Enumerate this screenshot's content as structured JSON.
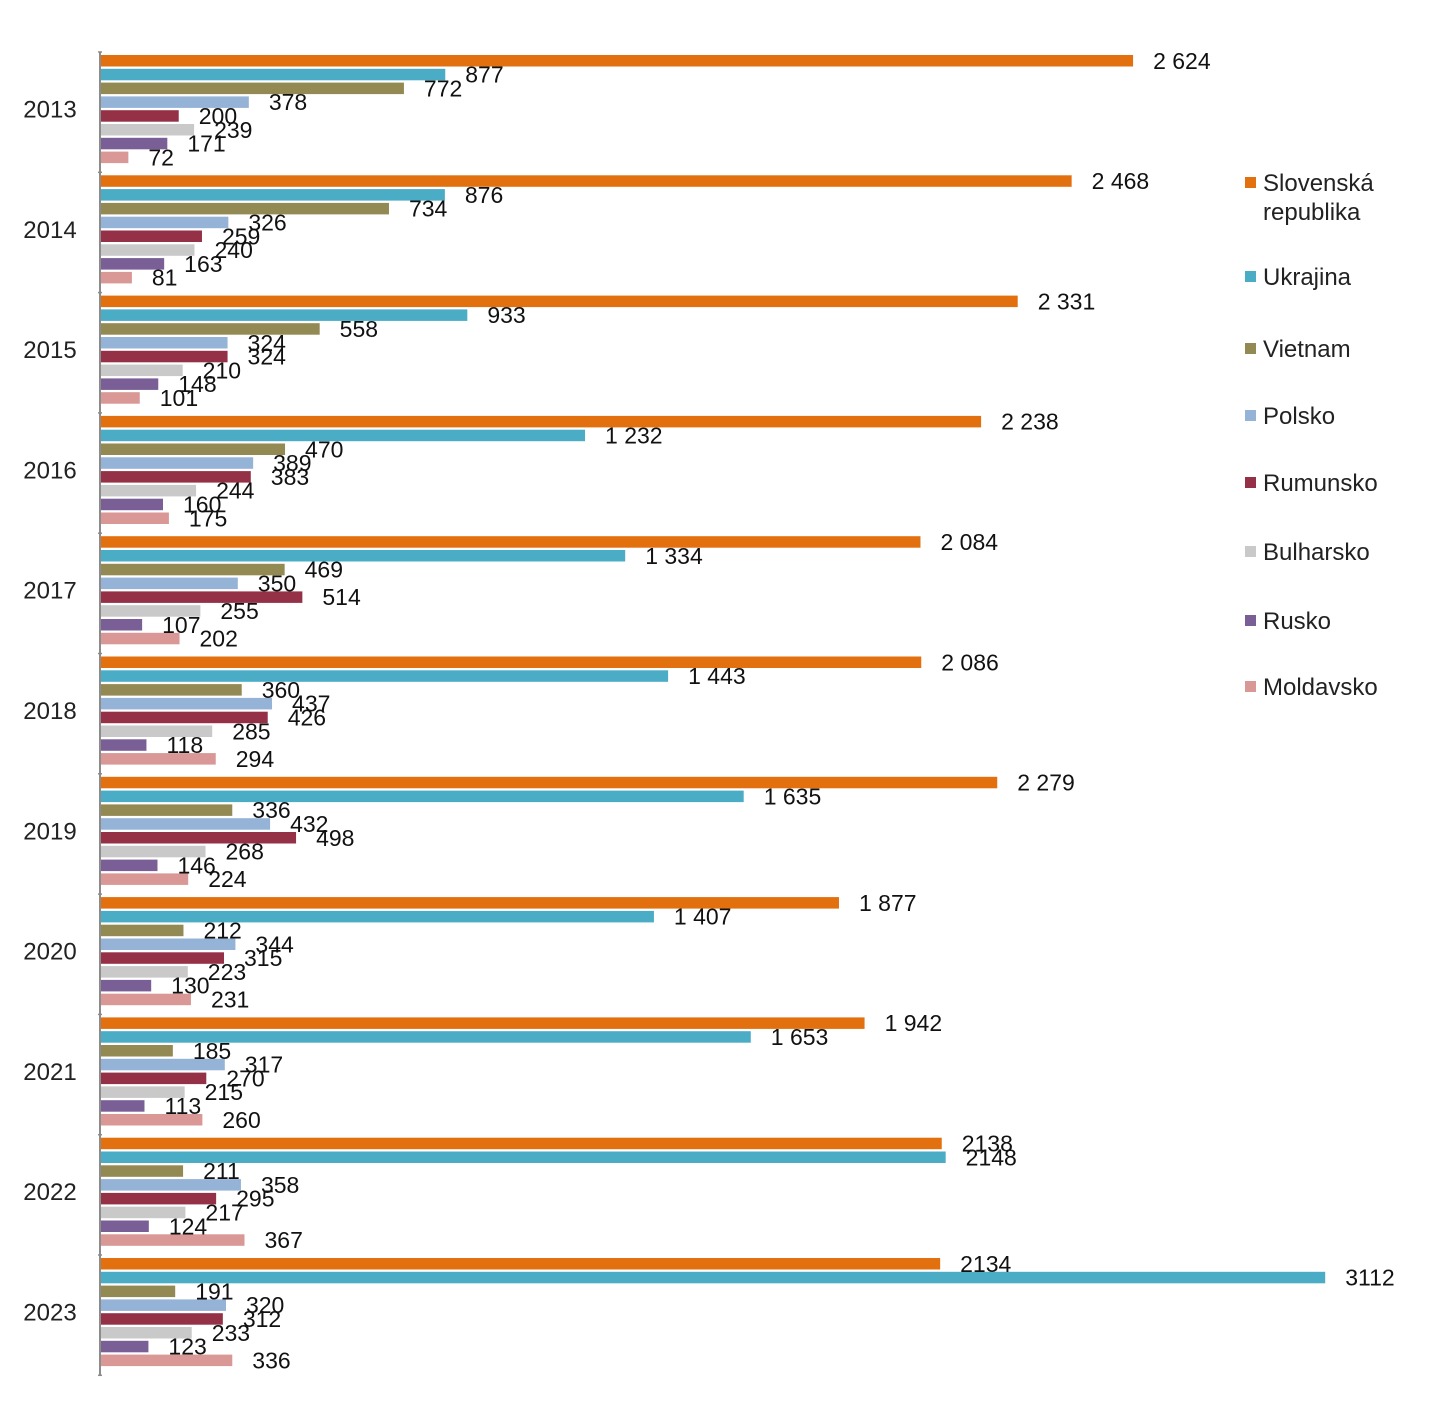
{
  "chart_data": {
    "type": "bar",
    "orientation": "horizontal",
    "categories": [
      "2013",
      "2014",
      "2015",
      "2016",
      "2017",
      "2018",
      "2019",
      "2020",
      "2021",
      "2022",
      "2023"
    ],
    "series": [
      {
        "name": "Slovenská republika",
        "color": "#e2700f",
        "values": [
          2624,
          2468,
          2331,
          2238,
          2084,
          2086,
          2279,
          1877,
          1942,
          2138,
          2134
        ],
        "labels": [
          "2 624",
          "2 468",
          "2 331",
          "2 238",
          "2 084",
          "2 086",
          "2 279",
          "1 877",
          "1 942",
          "2138",
          "2134"
        ]
      },
      {
        "name": "Ukrajina",
        "color": "#4bacc6",
        "values": [
          877,
          876,
          933,
          1232,
          1334,
          1443,
          1635,
          1407,
          1653,
          2148,
          3112
        ],
        "labels": [
          "877",
          "876",
          "933",
          "1 232",
          "1 334",
          "1 443",
          "1 635",
          "1 407",
          "1 653",
          "2148",
          "3112"
        ]
      },
      {
        "name": "Vietnam",
        "color": "#938953",
        "values": [
          772,
          734,
          558,
          470,
          469,
          360,
          336,
          212,
          185,
          211,
          191
        ],
        "labels": [
          "772",
          "734",
          "558",
          "470",
          "469",
          "360",
          "336",
          "212",
          "185",
          "211",
          "191"
        ]
      },
      {
        "name": "Polsko",
        "color": "#95b3d7",
        "values": [
          378,
          326,
          324,
          389,
          350,
          437,
          432,
          344,
          317,
          358,
          320
        ],
        "labels": [
          "378",
          "326",
          "324",
          "389",
          "350",
          "437",
          "432",
          "344",
          "317",
          "358",
          "320"
        ]
      },
      {
        "name": "Rumunsko",
        "color": "#953147",
        "values": [
          200,
          259,
          324,
          383,
          514,
          426,
          498,
          315,
          270,
          295,
          312
        ],
        "labels": [
          "200",
          "259",
          "324",
          "383",
          "514",
          "426",
          "498",
          "315",
          "270",
          "295",
          "312"
        ]
      },
      {
        "name": "Bulharsko",
        "color": "#c9c9c9",
        "values": [
          239,
          240,
          210,
          244,
          255,
          285,
          268,
          223,
          215,
          217,
          233
        ],
        "labels": [
          "239",
          "240",
          "210",
          "244",
          "255",
          "285",
          "268",
          "223",
          "215",
          "217",
          "233"
        ]
      },
      {
        "name": "Rusko",
        "color": "#7a5e96",
        "values": [
          171,
          163,
          148,
          160,
          107,
          118,
          146,
          130,
          113,
          124,
          123
        ],
        "labels": [
          "171",
          "163",
          "148",
          "160",
          "107",
          "118",
          "146",
          "130",
          "113",
          "124",
          "123"
        ]
      },
      {
        "name": "Moldavsko",
        "color": "#d99795",
        "values": [
          72,
          81,
          101,
          175,
          202,
          294,
          224,
          231,
          260,
          367,
          336
        ],
        "labels": [
          "72",
          "81",
          "101",
          "175",
          "202",
          "294",
          "224",
          "231",
          "260",
          "367",
          "336"
        ]
      }
    ],
    "legend": {
      "position": "right",
      "entries": [
        "Slovenská republika",
        "Ukrajina",
        "Vietnam",
        "Polsko",
        "Rumunsko",
        "Bulharsko",
        "Rusko",
        "Moldavsko"
      ]
    },
    "xlim": [
      0,
      3112
    ],
    "grid": false,
    "title": "",
    "xlabel": "",
    "ylabel": ""
  }
}
